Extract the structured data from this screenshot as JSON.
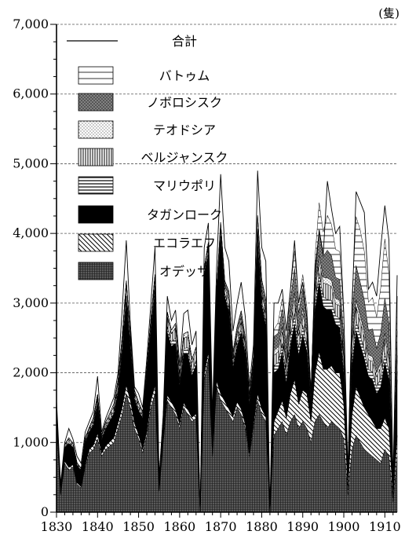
{
  "chart_data": {
    "type": "area",
    "stacked": true,
    "unit": "(隻)",
    "x_start": 1830,
    "x_end": 1913,
    "ylim": [
      0,
      7000
    ],
    "y_ticks": [
      0,
      1000,
      2000,
      3000,
      4000,
      5000,
      6000,
      7000
    ],
    "y_tick_labels": [
      "0",
      "1,000",
      "2,000",
      "3,000",
      "4,000",
      "5,000",
      "6,000",
      "7,000"
    ],
    "x_ticks": [
      1830,
      1840,
      1850,
      1860,
      1870,
      1880,
      1890,
      1900,
      1910
    ],
    "x_tick_labels": [
      "1830",
      "1840",
      "1850",
      "1860",
      "1870",
      "1880",
      "1890",
      "1900",
      "1910"
    ],
    "grid": "horizontal-dashed",
    "legend_position": "top-left",
    "legend": [
      {
        "label": "合計",
        "pattern": "line"
      },
      {
        "label": "バトゥム",
        "pattern": "hlines-wide"
      },
      {
        "label": "ノボロシスク",
        "pattern": "crosshatch-grey"
      },
      {
        "label": "テオドシア",
        "pattern": "dots"
      },
      {
        "label": "ベルジャンスク",
        "pattern": "vlines"
      },
      {
        "label": "マリウポリ",
        "pattern": "hlines"
      },
      {
        "label": "タガンローク",
        "pattern": "solid-black"
      },
      {
        "label": "エコラエフ",
        "pattern": "diagonal"
      },
      {
        "label": "オデッサ",
        "pattern": "dense-grid"
      }
    ],
    "total": [
      1600,
      400,
      1000,
      1200,
      1050,
      800,
      700,
      1150,
      1300,
      1450,
      1950,
      1150,
      1350,
      1500,
      1650,
      2000,
      2900,
      3900,
      2700,
      1800,
      1700,
      1500,
      2200,
      3000,
      3800,
      500,
      1400,
      3100,
      2750,
      2900,
      2100,
      2850,
      2900,
      2400,
      2600,
      0,
      3800,
      4150,
      1400,
      3500,
      4850,
      3800,
      3600,
      2600,
      3000,
      3300,
      2800,
      1800,
      2400,
      4900,
      3800,
      3600,
      0,
      3000,
      3000,
      3200,
      2600,
      3200,
      3900,
      3000,
      3300,
      2800,
      1700,
      3400,
      4050,
      3700,
      4750,
      4350,
      4000,
      4100,
      2850,
      600,
      2900,
      4600,
      4450,
      4300,
      3200,
      3300,
      3100,
      3800,
      4400,
      3900,
      450,
      3400
    ],
    "series": [
      {
        "name": "オデッサ",
        "values": [
          1300,
          250,
          700,
          600,
          650,
          400,
          350,
          650,
          850,
          900,
          1050,
          800,
          900,
          950,
          1000,
          1200,
          1400,
          1700,
          1500,
          1200,
          1050,
          850,
          1100,
          1500,
          1700,
          300,
          1000,
          1600,
          1500,
          1400,
          1200,
          1500,
          1400,
          1300,
          1350,
          0,
          1900,
          2200,
          800,
          1800,
          1600,
          1500,
          1400,
          1300,
          1500,
          1400,
          1200,
          800,
          1200,
          1600,
          1400,
          1300,
          0,
          1100,
          1200,
          1300,
          1100,
          1300,
          1400,
          1200,
          1300,
          1200,
          1000,
          1300,
          1400,
          1300,
          1200,
          1300,
          1250,
          1200,
          1050,
          250,
          900,
          1100,
          1000,
          900,
          850,
          800,
          750,
          700,
          900,
          800,
          150,
          800
        ]
      },
      {
        "name": "エコラエフ",
        "values": [
          50,
          20,
          30,
          40,
          30,
          20,
          20,
          30,
          50,
          60,
          80,
          40,
          50,
          60,
          70,
          80,
          100,
          120,
          100,
          80,
          60,
          50,
          60,
          100,
          120,
          20,
          50,
          80,
          80,
          70,
          60,
          70,
          70,
          60,
          60,
          0,
          80,
          100,
          40,
          80,
          100,
          90,
          80,
          70,
          80,
          80,
          60,
          40,
          60,
          100,
          80,
          70,
          0,
          200,
          250,
          300,
          250,
          400,
          500,
          350,
          450,
          500,
          300,
          700,
          900,
          750,
          850,
          800,
          750,
          800,
          500,
          80,
          500,
          700,
          650,
          600,
          550,
          500,
          450,
          500,
          450,
          400,
          50,
          300
        ]
      },
      {
        "name": "タガンローク",
        "values": [
          150,
          80,
          200,
          350,
          250,
          250,
          220,
          320,
          250,
          300,
          420,
          200,
          250,
          300,
          350,
          450,
          800,
          1200,
          750,
          350,
          350,
          450,
          800,
          1000,
          1350,
          150,
          300,
          900,
          800,
          950,
          550,
          700,
          800,
          600,
          700,
          0,
          1400,
          1400,
          450,
          1200,
          2200,
          1500,
          1400,
          700,
          800,
          1100,
          1000,
          700,
          800,
          2100,
          1500,
          1300,
          0,
          700,
          600,
          700,
          500,
          700,
          800,
          700,
          800,
          600,
          300,
          900,
          1000,
          900,
          850,
          800,
          700,
          650,
          400,
          150,
          700,
          800,
          750,
          700,
          550,
          600,
          500,
          600,
          800,
          700,
          150,
          800
        ]
      },
      {
        "name": "マリウポリ",
        "values": [
          10,
          5,
          10,
          20,
          15,
          10,
          10,
          20,
          20,
          30,
          40,
          20,
          30,
          30,
          40,
          50,
          60,
          80,
          60,
          40,
          40,
          30,
          40,
          60,
          80,
          5,
          10,
          80,
          60,
          80,
          40,
          80,
          90,
          60,
          70,
          0,
          40,
          50,
          20,
          40,
          60,
          50,
          60,
          50,
          60,
          60,
          50,
          30,
          40,
          80,
          60,
          70,
          0,
          100,
          100,
          120,
          100,
          130,
          150,
          120,
          130,
          100,
          40,
          120,
          130,
          140,
          150,
          140,
          120,
          130,
          100,
          20,
          130,
          150,
          140,
          130,
          100,
          110,
          100,
          120,
          140,
          120,
          10,
          120
        ]
      },
      {
        "name": "ベルジャンスク",
        "values": [
          20,
          10,
          20,
          40,
          30,
          20,
          20,
          30,
          30,
          40,
          60,
          30,
          40,
          50,
          60,
          70,
          100,
          150,
          100,
          50,
          50,
          40,
          50,
          80,
          100,
          5,
          10,
          150,
          120,
          150,
          80,
          150,
          160,
          120,
          130,
          0,
          60,
          80,
          20,
          60,
          100,
          80,
          100,
          80,
          90,
          100,
          80,
          50,
          60,
          120,
          100,
          110,
          0,
          150,
          150,
          160,
          130,
          170,
          200,
          160,
          170,
          130,
          50,
          150,
          180,
          200,
          220,
          200,
          170,
          180,
          140,
          20,
          170,
          200,
          190,
          180,
          140,
          150,
          140,
          160,
          200,
          170,
          20,
          160
        ]
      },
      {
        "name": "テオドシア",
        "values": [
          10,
          5,
          10,
          20,
          15,
          10,
          10,
          20,
          20,
          30,
          40,
          20,
          30,
          30,
          40,
          50,
          60,
          70,
          50,
          30,
          30,
          20,
          30,
          40,
          60,
          0,
          10,
          60,
          50,
          60,
          40,
          60,
          70,
          50,
          60,
          0,
          30,
          40,
          10,
          30,
          50,
          40,
          50,
          40,
          50,
          50,
          40,
          20,
          30,
          60,
          50,
          50,
          0,
          70,
          70,
          80,
          60,
          80,
          100,
          80,
          80,
          60,
          20,
          70,
          80,
          80,
          90,
          90,
          80,
          80,
          60,
          10,
          80,
          90,
          90,
          80,
          70,
          70,
          60,
          70,
          80,
          70,
          10,
          70
        ]
      },
      {
        "name": "ノボロシスク",
        "values": [
          0,
          0,
          0,
          0,
          0,
          0,
          0,
          0,
          0,
          0,
          0,
          0,
          0,
          0,
          0,
          0,
          0,
          0,
          0,
          0,
          0,
          0,
          0,
          0,
          0,
          0,
          0,
          0,
          0,
          0,
          0,
          0,
          0,
          0,
          0,
          0,
          0,
          0,
          0,
          0,
          50,
          60,
          80,
          60,
          80,
          100,
          80,
          50,
          60,
          200,
          150,
          150,
          0,
          200,
          200,
          250,
          200,
          250,
          350,
          250,
          280,
          200,
          10,
          280,
          350,
          300,
          400,
          350,
          300,
          300,
          250,
          20,
          300,
          500,
          480,
          450,
          350,
          400,
          350,
          420,
          500,
          450,
          10,
          350
        ]
      },
      {
        "name": "バトゥム",
        "values": [
          0,
          0,
          0,
          0,
          0,
          0,
          0,
          0,
          0,
          0,
          0,
          0,
          0,
          0,
          0,
          0,
          0,
          0,
          0,
          0,
          0,
          0,
          0,
          0,
          0,
          0,
          0,
          0,
          0,
          0,
          0,
          0,
          0,
          0,
          0,
          0,
          0,
          0,
          0,
          0,
          0,
          0,
          0,
          0,
          0,
          0,
          0,
          0,
          0,
          0,
          0,
          0,
          0,
          100,
          150,
          150,
          100,
          150,
          250,
          150,
          200,
          150,
          0,
          150,
          400,
          350,
          500,
          450,
          400,
          400,
          300,
          20,
          300,
          700,
          750,
          700,
          400,
          450,
          450,
          650,
          850,
          700,
          20,
          500
        ]
      }
    ]
  }
}
